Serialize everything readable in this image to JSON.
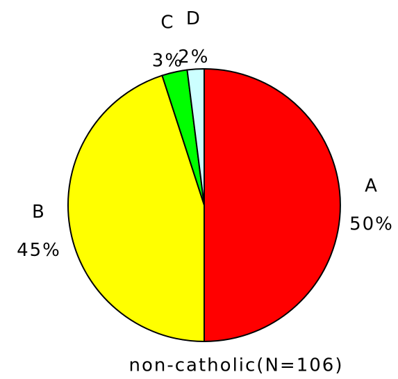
{
  "chart_data": {
    "type": "pie",
    "caption": "non-catholic(N=106)",
    "categories": [
      "A",
      "B",
      "C",
      "D"
    ],
    "values": [
      50,
      45,
      3,
      2
    ],
    "value_labels": [
      "50%",
      "45%",
      "3%",
      "2%"
    ],
    "colors": [
      "#ff0000",
      "#ffff00",
      "#00ff00",
      "#ccffff"
    ]
  }
}
